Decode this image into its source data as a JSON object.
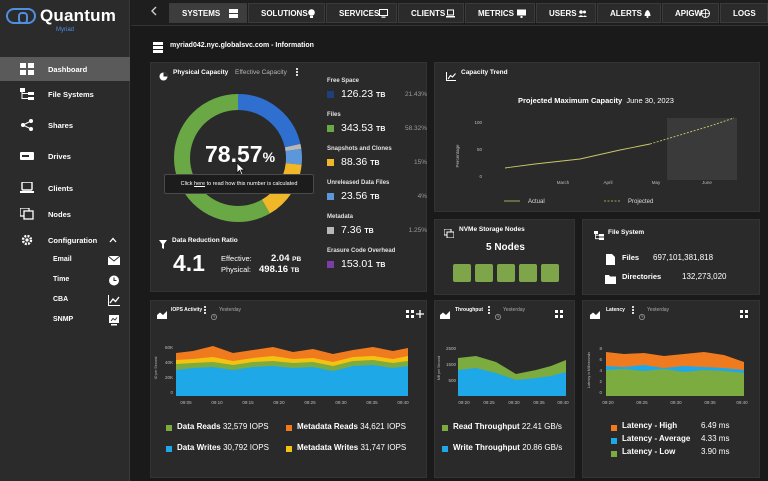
{
  "brand": {
    "name": "Quantum",
    "sub": "Myriad"
  },
  "sidebar": {
    "items": [
      {
        "label": "Dashboard"
      },
      {
        "label": "File Systems"
      },
      {
        "label": "Shares"
      },
      {
        "label": "Drives"
      },
      {
        "label": "Clients"
      },
      {
        "label": "Nodes"
      },
      {
        "label": "Configuration"
      }
    ],
    "config_items": [
      {
        "label": "Email"
      },
      {
        "label": "Time"
      },
      {
        "label": "CBA"
      },
      {
        "label": "SNMP"
      }
    ]
  },
  "topnav": {
    "tabs": [
      {
        "label": "SYSTEMS"
      },
      {
        "label": "SOLUTIONS"
      },
      {
        "label": "SERVICES"
      },
      {
        "label": "CLIENTS"
      },
      {
        "label": "METRICS"
      },
      {
        "label": "USERS"
      },
      {
        "label": "ALERTS"
      },
      {
        "label": "APIGW"
      },
      {
        "label": "LOGS"
      }
    ]
  },
  "breadcrumb": "myriad042.nyc.globalsvc.com - Information",
  "capacity": {
    "title": "Physical Capacity",
    "alt": "Effective Capacity",
    "value": "78.57",
    "unit": "%",
    "tooltip_pre": "Click ",
    "tooltip_link": "here",
    "tooltip_post": " to read how this number is calculated",
    "legend": [
      {
        "label": "Free Space",
        "value": "126.23",
        "unit": "TB",
        "pct": "21.43%",
        "color": "#1e3f7a"
      },
      {
        "label": "Files",
        "value": "343.53",
        "unit": "TB",
        "pct": "58.32%",
        "color": "#6aa845"
      },
      {
        "label": "Snapshots and Clones",
        "value": "88.36",
        "unit": "TB",
        "pct": "15%",
        "color": "#f0b829"
      },
      {
        "label": "Unreleased Data Files",
        "value": "23.56",
        "unit": "TB",
        "pct": "4%",
        "color": "#5c97dc"
      },
      {
        "label": "Metadata",
        "value": "7.36",
        "unit": "TB",
        "pct": "1.25%",
        "color": "#b8b8b8"
      },
      {
        "label": "Erasure Code Overhead",
        "value": "153.01",
        "unit": "TB",
        "pct": "",
        "color": "#7b3da6"
      }
    ]
  },
  "data_reduction": {
    "title": "Data Reduction Ratio",
    "value": "4.1",
    "effective_label": "Effective:",
    "effective_value": "2.04",
    "effective_unit": "PB",
    "physical_label": "Physical:",
    "physical_value": "498.16",
    "physical_unit": "TB"
  },
  "capacity_trend": {
    "title": "Capacity Trend",
    "chart_title": "Projected Maximum Capacity",
    "chart_date": "June 30, 2023",
    "ylabel": "Percentage",
    "yticks": [
      "100",
      "50",
      "0"
    ],
    "xticks": [
      "March",
      "April",
      "May",
      "June"
    ],
    "legend_actual": "Actual",
    "legend_projected": "Projected"
  },
  "nvme": {
    "title": "NVMe Storage Nodes",
    "count_label": "5 Nodes",
    "nodes": 5
  },
  "filesystem": {
    "title": "File System",
    "files_label": "Files",
    "files_value": "697,101,381,818",
    "dirs_label": "Directories",
    "dirs_value": "132,273,020"
  },
  "iops": {
    "title": "IOPS Activity",
    "period": "Yesterday",
    "ylabel": "IO per Second",
    "yticks": [
      "60K",
      "40K",
      "20K",
      "0"
    ],
    "xticks": [
      "09:05",
      "09:10",
      "09:15",
      "09:20",
      "09:25",
      "09:30",
      "09:35",
      "09:40"
    ],
    "legend": [
      {
        "label": "Data Reads",
        "value": "32,579 IOPS",
        "color": "#7cab3f"
      },
      {
        "label": "Metadata Reads",
        "value": "34,621 IOPS",
        "color": "#f07a1e"
      },
      {
        "label": "Data Writes",
        "value": "30,792 IOPS",
        "color": "#1fa8e8"
      },
      {
        "label": "Metadata Writes",
        "value": "31,747 IOPS",
        "color": "#f3c312"
      }
    ]
  },
  "throughput": {
    "title": "Throughput",
    "period": "Yesterday",
    "ylabel": "MB per Second",
    "yticks": [
      "2500",
      "1500",
      "500"
    ],
    "xticks": [
      "09:20",
      "09:25",
      "09:30",
      "09:35",
      "09:40"
    ],
    "legend": [
      {
        "label": "Read Throughput",
        "value": "22.41 GB/s",
        "color": "#7cab3f"
      },
      {
        "label": "Write Throughput",
        "value": "20.86 GB/s",
        "color": "#1fa8e8"
      }
    ]
  },
  "latency": {
    "title": "Latency",
    "period": "Yesterday",
    "ylabel": "Latency in Milliseconds",
    "yticks": [
      "8",
      "6",
      "4",
      "2",
      "0"
    ],
    "xticks": [
      "09:20",
      "09:25",
      "09:30",
      "09:35",
      "09:40"
    ],
    "legend": [
      {
        "label": "Latency - High",
        "value": "6.49 ms",
        "color": "#f07a1e"
      },
      {
        "label": "Latency - Average",
        "value": "4.33 ms",
        "color": "#1fa8e8"
      },
      {
        "label": "Latency - Low",
        "value": "3.90 ms",
        "color": "#7cab3f"
      }
    ]
  }
}
